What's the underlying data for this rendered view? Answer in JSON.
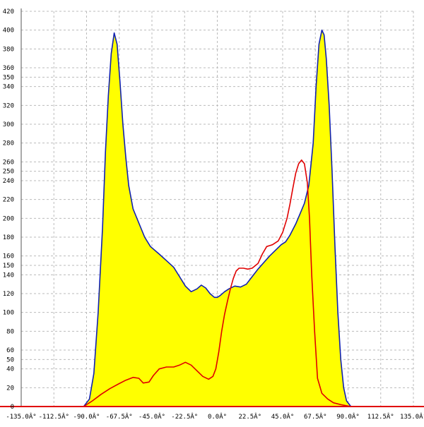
{
  "chart_data": {
    "type": "area",
    "title": "",
    "xlabel": "",
    "ylabel": "",
    "xlim": [
      -135,
      135
    ],
    "ylim": [
      0,
      420
    ],
    "grid": true,
    "x_ticks": [
      -135,
      -112.5,
      -90,
      -67.5,
      -45,
      -22.5,
      0,
      22.5,
      45,
      67.5,
      90,
      112.5,
      135
    ],
    "x_tick_labels": [
      "-135.0Â°",
      "-112.5Â°",
      "-90.0Â°",
      "-67.5Â°",
      "-45.0Â°",
      "-22.5Â°",
      "0.0Â°",
      "22.5Â°",
      "45.0Â°",
      "67.5Â°",
      "90.0Â°",
      "112.5Â°",
      "135.0Â°"
    ],
    "y_ticks": [
      0,
      20,
      40,
      50,
      60,
      80,
      100,
      120,
      140,
      150,
      160,
      180,
      200,
      220,
      240,
      250,
      260,
      280,
      300,
      320,
      340,
      350,
      360,
      380,
      400,
      420
    ],
    "series": [
      {
        "color": "#1020b0",
        "fill": "#ffff00",
        "points": [
          [
            -92,
            0
          ],
          [
            -88,
            8
          ],
          [
            -85,
            35
          ],
          [
            -82,
            100
          ],
          [
            -79,
            190
          ],
          [
            -77,
            270
          ],
          [
            -75,
            330
          ],
          [
            -73,
            375
          ],
          [
            -71,
            397
          ],
          [
            -69,
            385
          ],
          [
            -67,
            345
          ],
          [
            -65,
            300
          ],
          [
            -63,
            265
          ],
          [
            -61,
            235
          ],
          [
            -58,
            210
          ],
          [
            -54,
            195
          ],
          [
            -50,
            180
          ],
          [
            -46,
            170
          ],
          [
            -40,
            162
          ],
          [
            -35,
            155
          ],
          [
            -30,
            148
          ],
          [
            -26,
            138
          ],
          [
            -22,
            128
          ],
          [
            -18,
            122
          ],
          [
            -14,
            125
          ],
          [
            -11,
            129
          ],
          [
            -8,
            126
          ],
          [
            -5,
            120
          ],
          [
            -2,
            116
          ],
          [
            0,
            116
          ],
          [
            2,
            118
          ],
          [
            5,
            122
          ],
          [
            8,
            125
          ],
          [
            12,
            128
          ],
          [
            16,
            127
          ],
          [
            20,
            130
          ],
          [
            24,
            138
          ],
          [
            28,
            146
          ],
          [
            32,
            153
          ],
          [
            36,
            160
          ],
          [
            40,
            166
          ],
          [
            44,
            172
          ],
          [
            47,
            175
          ],
          [
            50,
            182
          ],
          [
            54,
            194
          ],
          [
            57,
            205
          ],
          [
            60,
            216
          ],
          [
            63,
            235
          ],
          [
            66,
            280
          ],
          [
            68,
            340
          ],
          [
            70,
            385
          ],
          [
            72,
            400
          ],
          [
            73.5,
            395
          ],
          [
            75,
            370
          ],
          [
            77,
            320
          ],
          [
            79,
            250
          ],
          [
            81,
            170
          ],
          [
            83,
            100
          ],
          [
            85,
            50
          ],
          [
            87,
            20
          ],
          [
            89,
            6
          ],
          [
            92,
            0
          ]
        ]
      },
      {
        "color": "#e00000",
        "fill": "none",
        "points": [
          [
            -92,
            0
          ],
          [
            -86,
            6
          ],
          [
            -80,
            13
          ],
          [
            -74,
            19
          ],
          [
            -68,
            24
          ],
          [
            -63,
            28
          ],
          [
            -58,
            31
          ],
          [
            -54,
            30
          ],
          [
            -51,
            25
          ],
          [
            -47,
            26
          ],
          [
            -44,
            33
          ],
          [
            -40,
            40
          ],
          [
            -35,
            42
          ],
          [
            -30,
            42
          ],
          [
            -26,
            44
          ],
          [
            -22,
            47
          ],
          [
            -18,
            44
          ],
          [
            -14,
            38
          ],
          [
            -10,
            32
          ],
          [
            -6,
            29
          ],
          [
            -3,
            32
          ],
          [
            -1,
            40
          ],
          [
            1,
            58
          ],
          [
            3,
            80
          ],
          [
            5,
            98
          ],
          [
            7,
            112
          ],
          [
            9,
            125
          ],
          [
            11,
            136
          ],
          [
            13,
            144
          ],
          [
            15,
            147
          ],
          [
            18,
            147
          ],
          [
            21,
            146
          ],
          [
            24,
            147
          ],
          [
            28,
            152
          ],
          [
            31,
            162
          ],
          [
            34,
            170
          ],
          [
            38,
            172
          ],
          [
            42,
            176
          ],
          [
            45,
            185
          ],
          [
            48,
            200
          ],
          [
            50,
            215
          ],
          [
            52,
            232
          ],
          [
            54,
            248
          ],
          [
            56,
            258
          ],
          [
            58,
            262
          ],
          [
            60,
            258
          ],
          [
            62,
            238
          ],
          [
            63.5,
            200
          ],
          [
            65,
            140
          ],
          [
            67,
            80
          ],
          [
            69,
            30
          ],
          [
            72,
            14
          ],
          [
            76,
            8
          ],
          [
            80,
            4
          ],
          [
            85,
            2
          ],
          [
            92,
            0
          ]
        ]
      }
    ]
  },
  "colors": {
    "grid": "#bbbbbb",
    "axis": "#555555",
    "baseline": "#e00000",
    "area_fill": "#ffff00"
  }
}
